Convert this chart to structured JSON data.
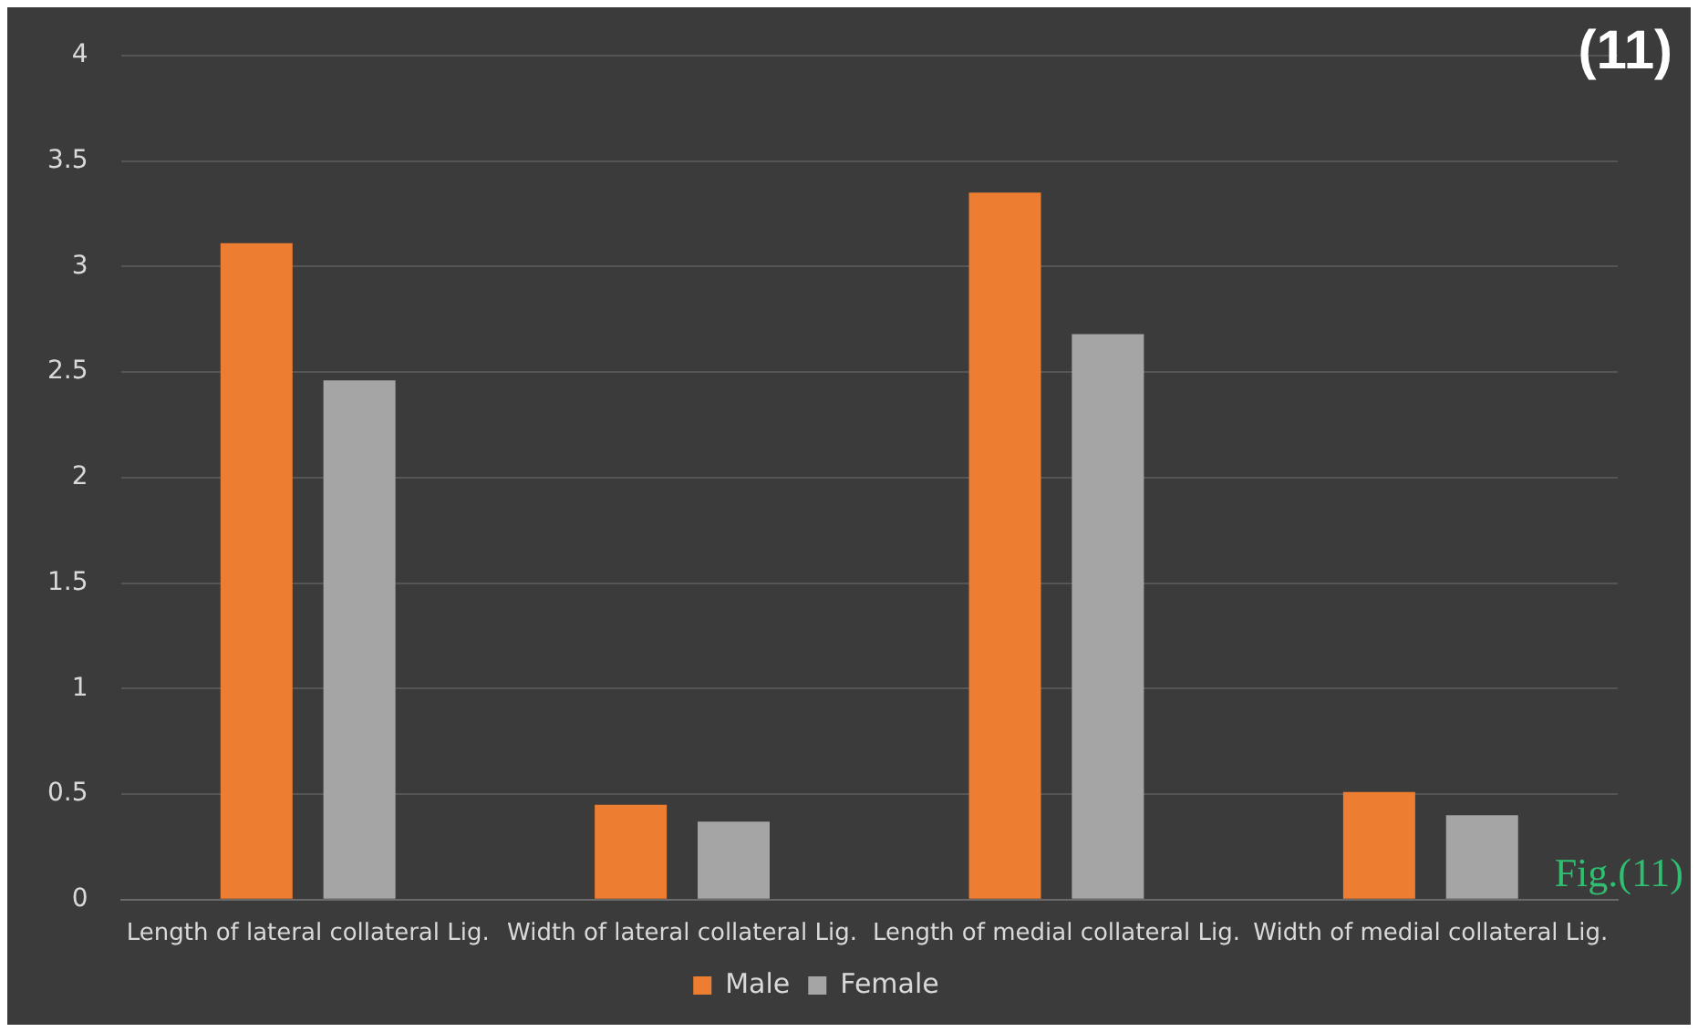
{
  "chart_data": {
    "type": "bar",
    "categories": [
      "Length of lateral collateral Lig.",
      "Width of lateral collateral Lig.",
      "Length of medial collateral Lig.",
      "Width of medial collateral Lig."
    ],
    "series": [
      {
        "name": "Male",
        "color": "#ed7d31",
        "values": [
          3.11,
          0.45,
          3.35,
          0.51
        ]
      },
      {
        "name": "Female",
        "color": "#a5a5a5",
        "values": [
          2.46,
          0.37,
          2.68,
          0.4
        ]
      }
    ],
    "ylim": [
      0,
      4
    ],
    "yticks": [
      0,
      0.5,
      1,
      1.5,
      2,
      2.5,
      3,
      3.5,
      4
    ],
    "grid": "y",
    "legend": "bottom",
    "annotations": [
      "(11)",
      "Fig.(11)"
    ]
  }
}
